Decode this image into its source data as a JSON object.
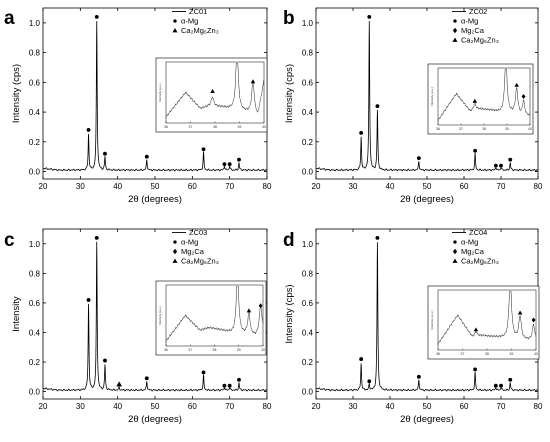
{
  "chart_data": [
    {
      "type": "line",
      "panel_label": "a",
      "xlabel": "2θ (degrees)",
      "ylabel": "Intensity (cps)",
      "xlim": [
        20,
        80
      ],
      "ylim": [
        -0.05,
        1.1
      ],
      "x_ticks": [
        "20",
        "30",
        "40",
        "50",
        "60",
        "70",
        "80"
      ],
      "y_ticks": [
        "0.0",
        "0.2",
        "0.4",
        "0.6",
        "0.8",
        "1.0"
      ],
      "series": [
        {
          "name": "ZC01",
          "peaks": [
            {
              "x": 32.2,
              "y": 0.24
            },
            {
              "x": 34.4,
              "y": 1.0
            },
            {
              "x": 36.6,
              "y": 0.09
            },
            {
              "x": 47.8,
              "y": 0.07
            },
            {
              "x": 63.0,
              "y": 0.12
            },
            {
              "x": 68.6,
              "y": 0.03
            },
            {
              "x": 70.0,
              "y": 0.03
            },
            {
              "x": 72.5,
              "y": 0.05
            }
          ]
        }
      ],
      "markers": [
        {
          "x": 32.2,
          "y": 0.28,
          "symbol": "circle"
        },
        {
          "x": 34.4,
          "y": 1.04,
          "symbol": "circle"
        },
        {
          "x": 36.6,
          "y": 0.12,
          "symbol": "circle"
        },
        {
          "x": 47.8,
          "y": 0.1,
          "symbol": "circle"
        },
        {
          "x": 63.0,
          "y": 0.15,
          "symbol": "circle"
        },
        {
          "x": 68.6,
          "y": 0.05,
          "symbol": "circle"
        },
        {
          "x": 70.0,
          "y": 0.05,
          "symbol": "circle"
        },
        {
          "x": 72.5,
          "y": 0.08,
          "symbol": "circle"
        }
      ],
      "legend": [
        {
          "type": "line",
          "label": "ZC01"
        },
        {
          "type": "circle",
          "label": "α-Mg"
        },
        {
          "type": "triangle",
          "label": "Ca₂Mg₆Zn₃"
        }
      ],
      "inset": {
        "xlim": [
          36,
          40
        ],
        "x_ticks": [
          "36",
          "37",
          "38",
          "39",
          "40"
        ],
        "ylabel": "Intensity (a.u.)",
        "points": [
          [
            36,
            0.1
          ],
          [
            36.8,
            0.5
          ],
          [
            37.4,
            0.24
          ],
          [
            37.8,
            0.28
          ],
          [
            38.3,
            0.26
          ],
          [
            38.8,
            0.22
          ],
          [
            39.5,
            0.16
          ],
          [
            39.75,
            0.12
          ],
          [
            40,
            0.7
          ]
        ],
        "peaks": [
          {
            "x": 37.9,
            "y": 0.15
          },
          {
            "x": 38.9,
            "y": 1.0
          },
          {
            "x": 39.55,
            "y": 0.55
          }
        ],
        "markers": [
          {
            "x": 37.9,
            "y": 0.52,
            "symbol": "triangle"
          },
          {
            "x": 39.55,
            "y": 0.68,
            "symbol": "triangle"
          }
        ]
      }
    },
    {
      "type": "line",
      "panel_label": "b",
      "xlabel": "2θ (degrees)",
      "ylabel": "Intensity (cps)",
      "xlim": [
        20,
        80
      ],
      "ylim": [
        -0.05,
        1.1
      ],
      "x_ticks": [
        "20",
        "30",
        "40",
        "50",
        "60",
        "70",
        "80"
      ],
      "y_ticks": [
        "0.0",
        "0.2",
        "0.4",
        "0.6",
        "0.8",
        "1.0"
      ],
      "series": [
        {
          "name": "ZC02",
          "peaks": [
            {
              "x": 32.2,
              "y": 0.22
            },
            {
              "x": 34.4,
              "y": 1.0
            },
            {
              "x": 36.6,
              "y": 0.4
            },
            {
              "x": 47.8,
              "y": 0.06
            },
            {
              "x": 63.0,
              "y": 0.11
            },
            {
              "x": 68.6,
              "y": 0.02
            },
            {
              "x": 70.0,
              "y": 0.02
            },
            {
              "x": 72.5,
              "y": 0.05
            }
          ]
        }
      ],
      "markers": [
        {
          "x": 32.2,
          "y": 0.26,
          "symbol": "circle"
        },
        {
          "x": 34.4,
          "y": 1.04,
          "symbol": "circle"
        },
        {
          "x": 36.6,
          "y": 0.44,
          "symbol": "circle"
        },
        {
          "x": 47.8,
          "y": 0.09,
          "symbol": "circle"
        },
        {
          "x": 63.0,
          "y": 0.14,
          "symbol": "circle"
        },
        {
          "x": 68.6,
          "y": 0.04,
          "symbol": "circle"
        },
        {
          "x": 70.0,
          "y": 0.04,
          "symbol": "circle"
        },
        {
          "x": 72.5,
          "y": 0.08,
          "symbol": "circle"
        }
      ],
      "legend": [
        {
          "type": "line",
          "label": "ZC02"
        },
        {
          "type": "circle",
          "label": "α-Mg"
        },
        {
          "type": "diamond",
          "label": "Mg₂Ca"
        },
        {
          "type": "triangle",
          "label": "Ca₂Mg₆Zn₃"
        }
      ],
      "inset": {
        "xlim": [
          36,
          40
        ],
        "x_ticks": [
          "36",
          "37",
          "38",
          "39",
          "40"
        ],
        "ylabel": "Intensity (a.u.)",
        "points": [
          [
            36,
            0.08
          ],
          [
            36.8,
            0.55
          ],
          [
            37.4,
            0.24
          ],
          [
            37.8,
            0.28
          ],
          [
            38.3,
            0.26
          ],
          [
            38.7,
            0.22
          ],
          [
            39.3,
            0.2
          ],
          [
            39.6,
            0.16
          ],
          [
            40,
            0.16
          ]
        ],
        "peaks": [
          {
            "x": 37.6,
            "y": 0.12
          },
          {
            "x": 38.95,
            "y": 1.0
          },
          {
            "x": 39.42,
            "y": 0.45
          },
          {
            "x": 39.72,
            "y": 0.25
          }
        ],
        "markers": [
          {
            "x": 37.6,
            "y": 0.42,
            "symbol": "triangle"
          },
          {
            "x": 39.42,
            "y": 0.7,
            "symbol": "triangle"
          },
          {
            "x": 39.72,
            "y": 0.5,
            "symbol": "diamond"
          }
        ]
      }
    },
    {
      "type": "line",
      "panel_label": "c",
      "xlabel": "2θ (degrees)",
      "ylabel": "Intensity",
      "xlim": [
        20,
        80
      ],
      "ylim": [
        -0.05,
        1.1
      ],
      "x_ticks": [
        "20",
        "30",
        "40",
        "50",
        "60",
        "70",
        "80"
      ],
      "y_ticks": [
        "0.0",
        "0.2",
        "0.4",
        "0.6",
        "0.8",
        "1.0"
      ],
      "series": [
        {
          "name": "ZC03",
          "peaks": [
            {
              "x": 32.2,
              "y": 0.58
            },
            {
              "x": 34.4,
              "y": 1.0
            },
            {
              "x": 36.6,
              "y": 0.17
            },
            {
              "x": 40.4,
              "y": 0.02
            },
            {
              "x": 47.8,
              "y": 0.06
            },
            {
              "x": 63.0,
              "y": 0.1
            },
            {
              "x": 68.6,
              "y": 0.02
            },
            {
              "x": 70.0,
              "y": 0.02
            },
            {
              "x": 72.5,
              "y": 0.05
            }
          ]
        }
      ],
      "markers": [
        {
          "x": 32.2,
          "y": 0.62,
          "symbol": "circle"
        },
        {
          "x": 34.4,
          "y": 1.04,
          "symbol": "circle"
        },
        {
          "x": 36.6,
          "y": 0.21,
          "symbol": "circle"
        },
        {
          "x": 40.4,
          "y": 0.05,
          "symbol": "triangle"
        },
        {
          "x": 47.8,
          "y": 0.09,
          "symbol": "circle"
        },
        {
          "x": 63.0,
          "y": 0.13,
          "symbol": "circle"
        },
        {
          "x": 68.6,
          "y": 0.04,
          "symbol": "circle"
        },
        {
          "x": 70.0,
          "y": 0.04,
          "symbol": "circle"
        },
        {
          "x": 72.5,
          "y": 0.08,
          "symbol": "circle"
        }
      ],
      "legend": [
        {
          "type": "line",
          "label": "ZC03"
        },
        {
          "type": "circle",
          "label": "α-Mg"
        },
        {
          "type": "diamond",
          "label": "Mg₂Ca"
        },
        {
          "type": "triangle",
          "label": "Ca₂Mg₆Zn₃"
        }
      ],
      "inset": {
        "xlim": [
          36,
          40
        ],
        "x_ticks": [
          "36",
          "37",
          "38",
          "39",
          "40"
        ],
        "ylabel": "Intensity (a.u.)",
        "points": [
          [
            36,
            0.08
          ],
          [
            36.8,
            0.5
          ],
          [
            37.4,
            0.26
          ],
          [
            37.8,
            0.3
          ],
          [
            38.3,
            0.26
          ],
          [
            38.8,
            0.2
          ],
          [
            39.4,
            0.18
          ],
          [
            39.7,
            0.16
          ],
          [
            40,
            0.25
          ]
        ],
        "peaks": [
          {
            "x": 38.95,
            "y": 1.0
          },
          {
            "x": 39.42,
            "y": 0.35
          },
          {
            "x": 39.9,
            "y": 0.45
          }
        ],
        "markers": [
          {
            "x": 39.42,
            "y": 0.58,
            "symbol": "triangle"
          },
          {
            "x": 39.9,
            "y": 0.66,
            "symbol": "diamond"
          }
        ]
      }
    },
    {
      "type": "line",
      "panel_label": "d",
      "xlabel": "2θ (degrees)",
      "ylabel": "Intensity (cps)",
      "xlim": [
        20,
        80
      ],
      "ylim": [
        -0.05,
        1.1
      ],
      "x_ticks": [
        "20",
        "30",
        "40",
        "50",
        "60",
        "70",
        "80"
      ],
      "y_ticks": [
        "0.0",
        "0.2",
        "0.4",
        "0.6",
        "0.8",
        "1.0"
      ],
      "series": [
        {
          "name": "ZC04",
          "peaks": [
            {
              "x": 32.2,
              "y": 0.18
            },
            {
              "x": 34.4,
              "y": 0.04
            },
            {
              "x": 36.6,
              "y": 1.0
            },
            {
              "x": 47.8,
              "y": 0.07
            },
            {
              "x": 63.0,
              "y": 0.12
            },
            {
              "x": 68.6,
              "y": 0.02
            },
            {
              "x": 70.0,
              "y": 0.02
            },
            {
              "x": 72.5,
              "y": 0.05
            }
          ]
        }
      ],
      "markers": [
        {
          "x": 32.2,
          "y": 0.22,
          "symbol": "circle"
        },
        {
          "x": 34.4,
          "y": 0.07,
          "symbol": "circle"
        },
        {
          "x": 36.6,
          "y": 1.04,
          "symbol": "circle"
        },
        {
          "x": 47.8,
          "y": 0.1,
          "symbol": "circle"
        },
        {
          "x": 63.0,
          "y": 0.15,
          "symbol": "circle"
        },
        {
          "x": 68.6,
          "y": 0.04,
          "symbol": "circle"
        },
        {
          "x": 70.0,
          "y": 0.04,
          "symbol": "circle"
        },
        {
          "x": 72.5,
          "y": 0.08,
          "symbol": "circle"
        }
      ],
      "legend": [
        {
          "type": "line",
          "label": "ZC04"
        },
        {
          "type": "circle",
          "label": "α-Mg"
        },
        {
          "type": "diamond",
          "label": "Mg₂Ca"
        },
        {
          "type": "triangle",
          "label": "Ca₂Mg₆Zn₃"
        }
      ],
      "inset": {
        "xlim": [
          36,
          40
        ],
        "x_ticks": [
          "36",
          "37",
          "38",
          "39",
          "40"
        ],
        "ylabel": "Intensity (a.u.)",
        "points": [
          [
            36,
            0.1
          ],
          [
            36.8,
            0.58
          ],
          [
            37.4,
            0.22
          ],
          [
            37.8,
            0.24
          ],
          [
            38.3,
            0.22
          ],
          [
            38.7,
            0.2
          ],
          [
            39.2,
            0.18
          ],
          [
            39.7,
            0.16
          ],
          [
            40,
            0.14
          ]
        ],
        "peaks": [
          {
            "x": 37.55,
            "y": 0.08
          },
          {
            "x": 38.95,
            "y": 1.0
          },
          {
            "x": 39.35,
            "y": 0.38
          },
          {
            "x": 39.9,
            "y": 0.28
          }
        ],
        "markers": [
          {
            "x": 37.55,
            "y": 0.34,
            "symbol": "triangle"
          },
          {
            "x": 39.35,
            "y": 0.62,
            "symbol": "triangle"
          },
          {
            "x": 39.9,
            "y": 0.5,
            "symbol": "diamond"
          }
        ]
      }
    }
  ]
}
